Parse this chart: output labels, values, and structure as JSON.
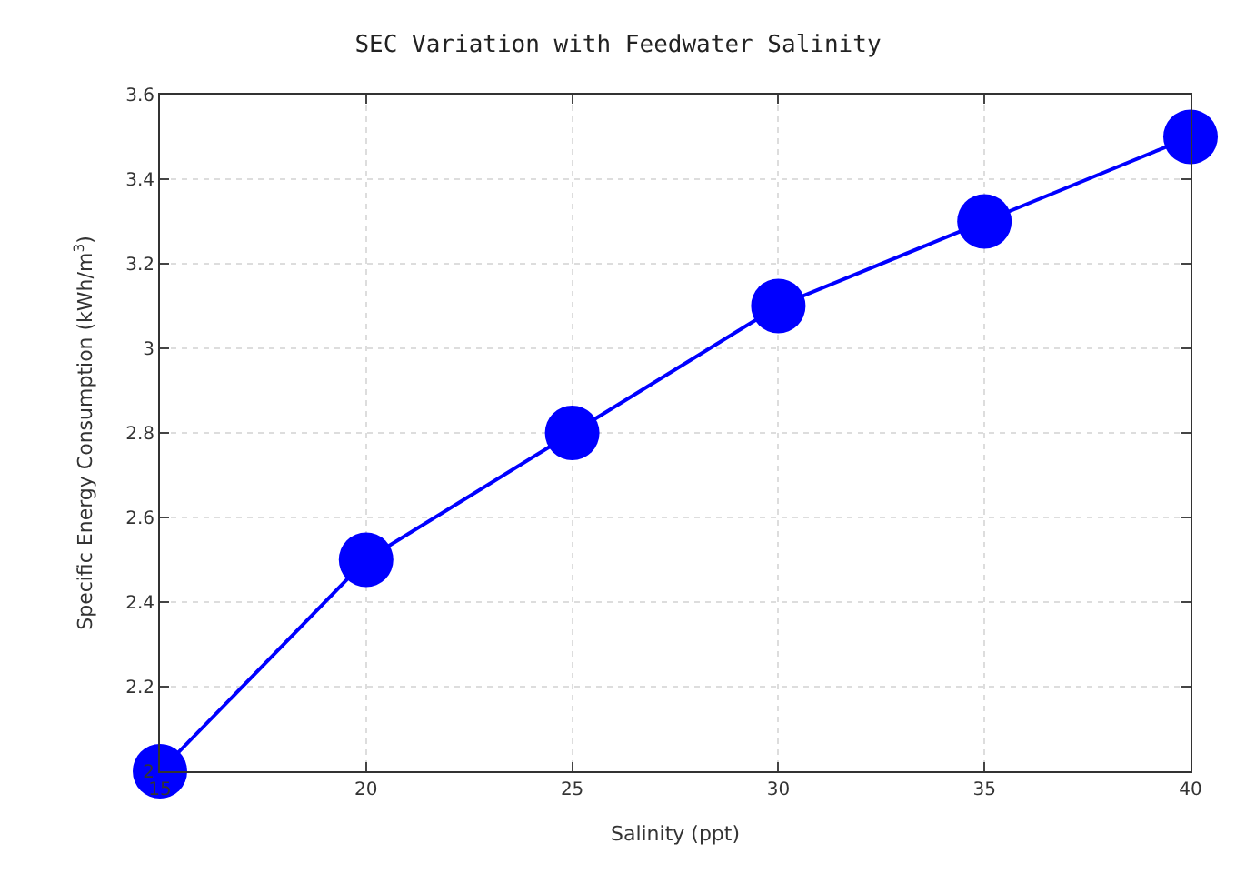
{
  "chart_data": {
    "type": "line",
    "title": "SEC Variation with Feedwater Salinity",
    "xlabel": "Salinity (ppt)",
    "ylabel": "Specific Energy Consumption (kWh/m$^{3}$)",
    "x": [
      15,
      20,
      25,
      30,
      35,
      40
    ],
    "series": [
      {
        "color": "#0000ff",
        "values": [
          2,
          2.5,
          2.8,
          3.1,
          3.3,
          3.5
        ]
      }
    ],
    "xlim": [
      15,
      40
    ],
    "xticks": [
      15,
      20,
      25,
      30,
      35,
      40
    ],
    "ylim": [
      2,
      3.6
    ],
    "yticks": [
      2,
      2.2,
      2.4,
      2.6,
      2.8,
      3,
      3.2,
      3.4,
      3.6
    ],
    "grid": true,
    "marker": "circle",
    "line_style": "solid"
  }
}
